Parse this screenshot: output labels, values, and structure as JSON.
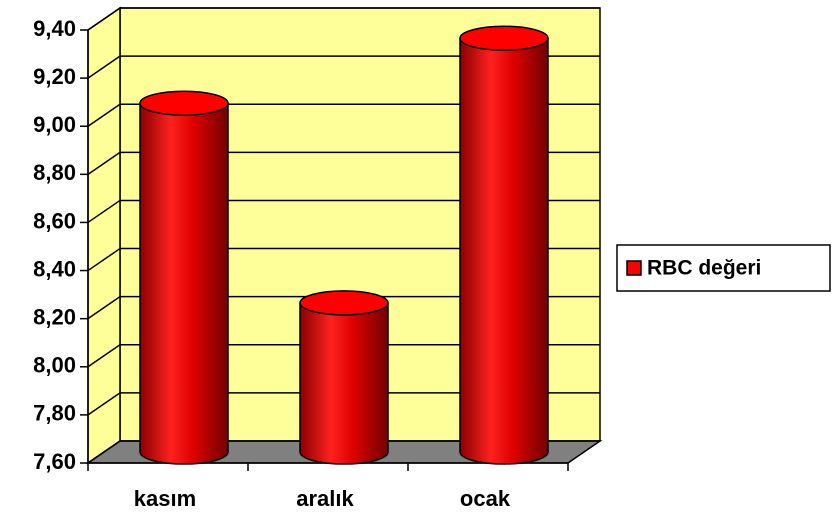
{
  "chart_data": {
    "type": "bar",
    "categories": [
      "kasım",
      "aralık",
      "ocak"
    ],
    "series": [
      {
        "name": "RBC değeri",
        "color": "#ff0000",
        "values": [
          9.05,
          8.22,
          9.32
        ]
      }
    ],
    "ylim": [
      7.6,
      9.4
    ],
    "yticks": [
      {
        "value": 7.6,
        "label": "7,60"
      },
      {
        "value": 7.8,
        "label": "7,80"
      },
      {
        "value": 8.0,
        "label": "8,00"
      },
      {
        "value": 8.2,
        "label": "8,20"
      },
      {
        "value": 8.4,
        "label": "8,40"
      },
      {
        "value": 8.6,
        "label": "8,60"
      },
      {
        "value": 8.8,
        "label": "8,80"
      },
      {
        "value": 9.0,
        "label": "9,00"
      },
      {
        "value": 9.2,
        "label": "9,20"
      },
      {
        "value": 9.4,
        "label": "9,40"
      }
    ],
    "grid": true,
    "legend": "right"
  }
}
